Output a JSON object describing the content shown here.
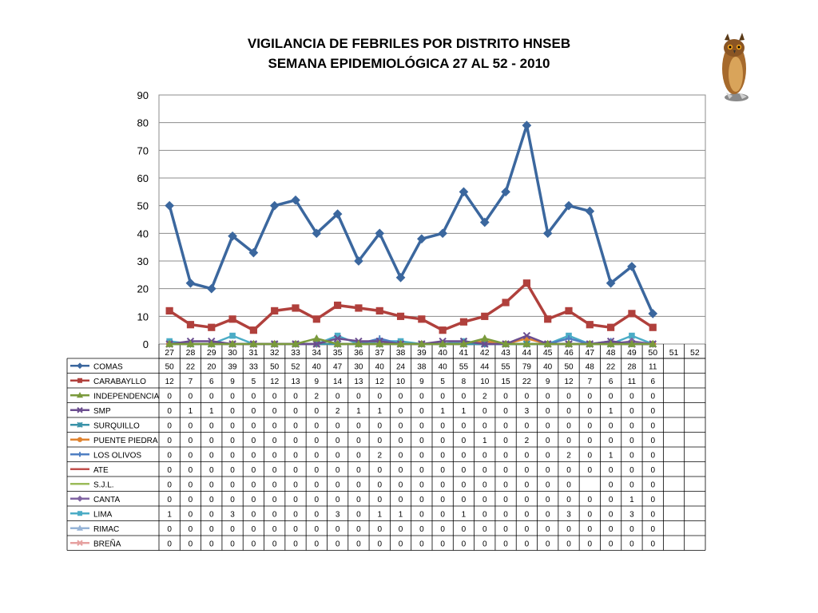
{
  "title_line1": "VIGILANCIA DE FEBRILES POR DISTRITO HNSEB",
  "title_line2": "SEMANA EPIDEMIOLÓGICA  27 AL 52 - 2010",
  "chart_data": {
    "type": "line",
    "title": "VIGILANCIA DE FEBRILES POR DISTRITO HNSEB / SEMANA EPIDEMIOLÓGICA  27 AL 52 - 2010",
    "categories": [
      "27",
      "28",
      "29",
      "30",
      "31",
      "32",
      "33",
      "34",
      "35",
      "36",
      "37",
      "38",
      "39",
      "40",
      "41",
      "42",
      "43",
      "44",
      "45",
      "46",
      "47",
      "48",
      "49",
      "50",
      "51",
      "52"
    ],
    "yticks": [
      "0",
      "10",
      "20",
      "30",
      "40",
      "50",
      "60",
      "70",
      "80",
      "90"
    ],
    "ylim": [
      0,
      90
    ],
    "grid": true,
    "legend": "data-table",
    "series": [
      {
        "name": "COMAS",
        "color": "#3b679e",
        "marker": "diamond",
        "values": [
          50,
          22,
          20,
          39,
          33,
          50,
          52,
          40,
          47,
          30,
          40,
          24,
          38,
          40,
          55,
          44,
          55,
          79,
          40,
          50,
          48,
          22,
          28,
          11,
          null,
          null
        ]
      },
      {
        "name": "CARABAYLLO",
        "color": "#b0403c",
        "marker": "square",
        "values": [
          12,
          7,
          6,
          9,
          5,
          12,
          13,
          9,
          14,
          13,
          12,
          10,
          9,
          5,
          8,
          10,
          15,
          22,
          9,
          12,
          7,
          6,
          11,
          6,
          null,
          null
        ]
      },
      {
        "name": "INDEPENDENCIA",
        "color": "#7a9a3c",
        "marker": "triangle",
        "values": [
          0,
          0,
          0,
          0,
          0,
          0,
          0,
          2,
          0,
          0,
          0,
          0,
          0,
          0,
          0,
          2,
          0,
          0,
          0,
          0,
          0,
          0,
          0,
          0,
          null,
          null
        ]
      },
      {
        "name": "SMP",
        "color": "#6b4d8f",
        "marker": "x",
        "values": [
          0,
          1,
          1,
          0,
          0,
          0,
          0,
          0,
          2,
          1,
          1,
          0,
          0,
          1,
          1,
          0,
          0,
          3,
          0,
          0,
          0,
          1,
          0,
          0,
          null,
          null
        ]
      },
      {
        "name": "SURQUILLO",
        "color": "#3a92a8",
        "marker": "star",
        "values": [
          0,
          0,
          0,
          0,
          0,
          0,
          0,
          0,
          0,
          0,
          0,
          0,
          0,
          0,
          0,
          0,
          0,
          0,
          0,
          0,
          0,
          0,
          0,
          0,
          null,
          null
        ]
      },
      {
        "name": "PUENTE PIEDRA",
        "color": "#e0832f",
        "marker": "circle",
        "values": [
          0,
          0,
          0,
          0,
          0,
          0,
          0,
          0,
          0,
          0,
          0,
          0,
          0,
          0,
          0,
          1,
          0,
          2,
          0,
          0,
          0,
          0,
          0,
          0,
          null,
          null
        ]
      },
      {
        "name": "LOS OLIVOS",
        "color": "#4f7fc2",
        "marker": "plus",
        "values": [
          0,
          0,
          0,
          0,
          0,
          0,
          0,
          0,
          0,
          0,
          2,
          0,
          0,
          0,
          0,
          0,
          0,
          0,
          0,
          2,
          0,
          1,
          0,
          0,
          null,
          null
        ]
      },
      {
        "name": "ATE",
        "color": "#c0504d",
        "marker": "dash",
        "values": [
          0,
          0,
          0,
          0,
          0,
          0,
          0,
          0,
          0,
          0,
          0,
          0,
          0,
          0,
          0,
          0,
          0,
          0,
          0,
          0,
          0,
          0,
          0,
          0,
          null,
          null
        ]
      },
      {
        "name": "S.J.L.",
        "color": "#9bbb59",
        "marker": "dash",
        "values": [
          0,
          0,
          0,
          0,
          0,
          0,
          0,
          0,
          0,
          0,
          0,
          0,
          0,
          0,
          0,
          0,
          0,
          0,
          0,
          0,
          null,
          0,
          0,
          0,
          null,
          null
        ]
      },
      {
        "name": "CANTA",
        "color": "#8064a2",
        "marker": "diamond",
        "values": [
          0,
          0,
          0,
          0,
          0,
          0,
          0,
          0,
          0,
          0,
          0,
          0,
          0,
          0,
          0,
          0,
          0,
          0,
          0,
          0,
          0,
          0,
          1,
          0,
          null,
          null
        ]
      },
      {
        "name": "LIMA",
        "color": "#4bacc6",
        "marker": "square",
        "values": [
          1,
          0,
          0,
          3,
          0,
          0,
          0,
          0,
          3,
          0,
          1,
          1,
          0,
          0,
          1,
          0,
          0,
          0,
          0,
          3,
          0,
          0,
          3,
          0,
          null,
          null
        ]
      },
      {
        "name": "RIMAC",
        "color": "#95b3d7",
        "marker": "triangle",
        "values": [
          0,
          0,
          0,
          0,
          0,
          0,
          0,
          0,
          0,
          0,
          0,
          0,
          0,
          0,
          0,
          0,
          0,
          0,
          0,
          0,
          0,
          0,
          0,
          0,
          null,
          null
        ]
      },
      {
        "name": "BREÑA",
        "color": "#e6a1a0",
        "marker": "x",
        "values": [
          0,
          0,
          0,
          0,
          0,
          0,
          0,
          0,
          0,
          0,
          0,
          0,
          0,
          0,
          0,
          0,
          0,
          0,
          0,
          0,
          0,
          0,
          0,
          0,
          null,
          null
        ]
      }
    ]
  },
  "owl_icon": "owl-icon"
}
